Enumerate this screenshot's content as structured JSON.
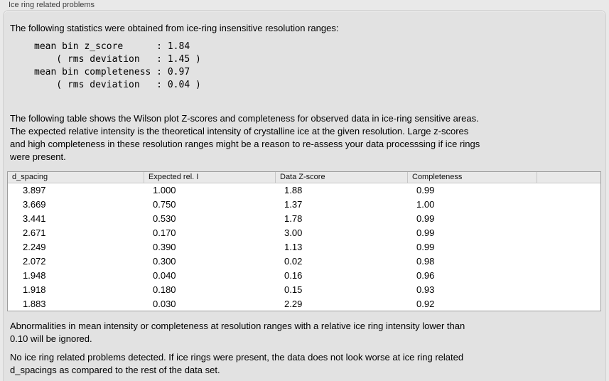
{
  "panel": {
    "title": "Ice ring related problems"
  },
  "intro": {
    "text": "The following statistics were obtained from ice-ring insensitive resolution ranges:"
  },
  "stats": {
    "text": "mean bin z_score      : 1.84\n    ( rms deviation   : 1.45 )\nmean bin completeness : 0.97\n    ( rms deviation   : 0.04 )"
  },
  "description": {
    "text": "The following table shows the Wilson plot Z-scores and completeness for observed data in ice-ring sensitive areas.\nThe expected relative intensity is the theoretical intensity of crystalline ice at the given resolution. Large z-scores\nand high completeness in these resolution ranges might be a reason to re-assess your data processsing if ice rings\nwere present."
  },
  "table": {
    "columns": [
      "d_spacing",
      "Expected rel. I",
      "Data Z-score",
      "Completeness"
    ],
    "rows": [
      [
        "3.897",
        "1.000",
        "1.88",
        "0.99"
      ],
      [
        "3.669",
        "0.750",
        "1.37",
        "1.00"
      ],
      [
        "3.441",
        "0.530",
        "1.78",
        "0.99"
      ],
      [
        "2.671",
        "0.170",
        "3.00",
        "0.99"
      ],
      [
        "2.249",
        "0.390",
        "1.13",
        "0.99"
      ],
      [
        "2.072",
        "0.300",
        "0.02",
        "0.98"
      ],
      [
        "1.948",
        "0.040",
        "0.16",
        "0.96"
      ],
      [
        "1.918",
        "0.180",
        "0.15",
        "0.93"
      ],
      [
        "1.883",
        "0.030",
        "2.29",
        "0.92"
      ]
    ]
  },
  "notes": {
    "ignore_text": "Abnormalities in mean intensity or completeness at resolution ranges with a relative ice ring intensity lower than\n0.10 will be ignored.",
    "result_text": "No ice ring related problems detected. If ice rings were present, the data does not look worse at ice ring related\nd_spacings as compared to the rest of the data set."
  },
  "colors": {
    "window_background": "#e9e9e9",
    "groupbox_background": "#e2e2e2",
    "groupbox_border": "#cfcfcf",
    "table_background": "#ffffff",
    "table_border": "#9d9d9d",
    "table_header_background": "#e9e9e9",
    "text": "#000000"
  }
}
